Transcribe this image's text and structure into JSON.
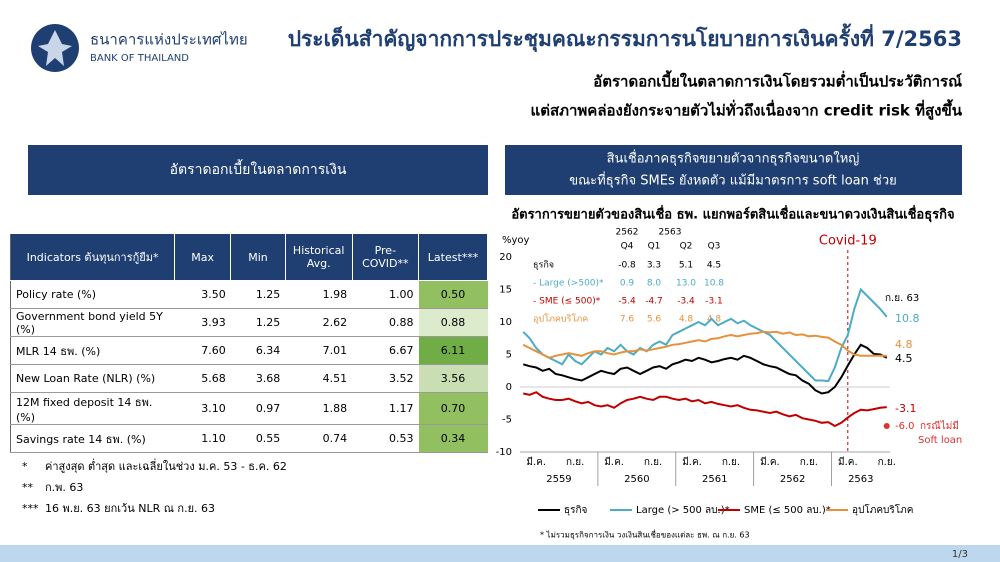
{
  "header": {
    "bank_name_th": "ธนาคารแห่งประเทศไทย",
    "bank_name_en": "BANK OF THAILAND",
    "title": "ประเด็นสำคัญจากการประชุมคณะกรรมการนโยบายการเงินครั้งที่ 7/2563",
    "subtitle_lines": [
      "อัตราดอกเบี้ยในตลาดการเงินโดยรวมต่ำเป็นประวัติการณ์",
      "แต่สภาพคล่องยังกระจายตัวไม่ทั่วถึงเนื่องจาก credit risk ที่สูงขึ้น"
    ]
  },
  "left_panel": {
    "heading": "อัตราดอกเบี้ยในตลาดการเงิน"
  },
  "right_panel": {
    "heading_lines": [
      "สินเชื่อภาคธุรกิจขยายตัวจากธุรกิจขนาดใหญ่",
      "ขณะที่ธุรกิจ SMEs ยังหดตัว แม้มีมาตรการ soft loan ช่วย"
    ]
  },
  "table": {
    "columns": [
      "Indicators ต้นทุนการกู้ยืม*",
      "Max",
      "Min",
      "Historical Avg.",
      "Pre-COVID**",
      "Latest***"
    ],
    "rows": [
      [
        "Policy rate (%)",
        "3.50",
        "1.25",
        "1.98",
        "1.00",
        "0.50"
      ],
      [
        "Government bond yield 5Y (%)",
        "3.93",
        "1.25",
        "2.62",
        "0.88",
        "0.88"
      ],
      [
        "MLR 14 ธพ. (%)",
        "7.60",
        "6.34",
        "7.01",
        "6.67",
        "6.11"
      ],
      [
        "New Loan Rate (NLR) (%)",
        "5.68",
        "3.68",
        "4.51",
        "3.52",
        "3.56"
      ],
      [
        "12M fixed deposit 14 ธพ. (%)",
        "3.10",
        "0.97",
        "1.88",
        "1.17",
        "0.70"
      ],
      [
        "Savings rate 14 ธพ. (%)",
        "1.10",
        "0.55",
        "0.74",
        "0.53",
        "0.34"
      ]
    ],
    "latest_colors": [
      "#92c060",
      "#dcebcb",
      "#70ad47",
      "#c9dfb3",
      "#92c060",
      "#92c060"
    ]
  },
  "notes": [
    {
      "mark": "*",
      "text": "ค่าสูงสุด ต่ำสุด และเฉลี่ยในช่วง ม.ค. 53 - ธ.ค. 62"
    },
    {
      "mark": "**",
      "text": "ก.พ. 63"
    },
    {
      "mark": "***",
      "text": "16 พ.ย. 63 ยกเว้น NLR ณ ก.ย. 63"
    }
  ],
  "chart_data": {
    "type": "line",
    "title": "อัตราการขยายตัวของสินเชื่อ ธพ. แยกพอร์ตสินเชื่อและขนาดวงเงินสินเชื่อธุรกิจ",
    "ylabel": "%yoy",
    "ylim": [
      -10,
      20
    ],
    "yticks": [
      20,
      15,
      10,
      5,
      0,
      -5,
      -10
    ],
    "categories": [
      null,
      null,
      "มี.ค.",
      null,
      null,
      null,
      null,
      null,
      "ก.ย.",
      null,
      null,
      null,
      null,
      null,
      "มี.ค.",
      null,
      null,
      null,
      null,
      null,
      "ก.ย.",
      null,
      null,
      null,
      null,
      null,
      "มี.ค.",
      null,
      null,
      null,
      null,
      null,
      "ก.ย.",
      null,
      null,
      null,
      null,
      null,
      "มี.ค.",
      null,
      null,
      null,
      null,
      null,
      "ก.ย.",
      null,
      null,
      null,
      null,
      null,
      "มี.ค.",
      null,
      null,
      null,
      null,
      null,
      "ก.ย."
    ],
    "year_labels": [
      "2559",
      "2560",
      "2561",
      "2562",
      "2563"
    ],
    "series": [
      {
        "name": "ธุรกิจ",
        "color": "#000000",
        "values": [
          3.5,
          3.2,
          3.0,
          2.5,
          2.8,
          2.0,
          1.8,
          1.5,
          1.2,
          1.0,
          1.5,
          2.0,
          2.5,
          2.2,
          2.0,
          2.8,
          3.0,
          2.5,
          2.0,
          2.5,
          3.0,
          3.2,
          2.8,
          3.5,
          3.8,
          4.2,
          4.0,
          4.5,
          4.2,
          3.8,
          4.0,
          4.3,
          4.5,
          4.2,
          4.8,
          4.5,
          4.0,
          3.5,
          3.2,
          3.0,
          2.5,
          2.0,
          1.8,
          1.0,
          0.5,
          -0.5,
          -1.0,
          -0.8,
          0.0,
          1.5,
          3.3,
          5.0,
          6.5,
          6.0,
          5.1,
          5.0,
          4.5
        ]
      },
      {
        "name": "Large (> 500 ลบ.)*",
        "color": "#4bacc6",
        "values": [
          8.5,
          7.5,
          6.0,
          5.0,
          4.5,
          4.0,
          3.5,
          5.0,
          4.0,
          3.5,
          4.5,
          5.5,
          5.0,
          6.0,
          5.5,
          6.5,
          5.5,
          5.0,
          6.0,
          5.5,
          6.5,
          7.0,
          6.5,
          8.0,
          8.5,
          9.0,
          9.5,
          10.0,
          9.5,
          10.5,
          9.5,
          10.0,
          10.5,
          9.8,
          10.2,
          9.5,
          9.0,
          8.5,
          8.0,
          7.0,
          6.0,
          5.0,
          4.0,
          3.0,
          2.0,
          1.0,
          1.0,
          0.9,
          3.0,
          6.0,
          8.0,
          12.0,
          15.0,
          14.0,
          13.0,
          12.0,
          10.8
        ]
      },
      {
        "name": "SME (≤ 500 ลบ.)*",
        "color": "#c00000",
        "values": [
          -1.0,
          -1.2,
          -0.8,
          -1.5,
          -1.8,
          -2.0,
          -2.0,
          -1.8,
          -2.2,
          -2.5,
          -2.3,
          -2.8,
          -3.0,
          -2.8,
          -3.2,
          -2.5,
          -2.0,
          -1.8,
          -1.5,
          -1.8,
          -2.0,
          -1.5,
          -1.5,
          -1.8,
          -2.0,
          -1.8,
          -2.2,
          -2.0,
          -2.5,
          -2.3,
          -2.6,
          -2.8,
          -3.0,
          -2.8,
          -3.2,
          -3.5,
          -3.6,
          -3.8,
          -4.0,
          -3.8,
          -4.2,
          -4.5,
          -4.3,
          -4.8,
          -5.0,
          -5.2,
          -5.5,
          -5.4,
          -6.0,
          -5.5,
          -4.7,
          -4.0,
          -3.5,
          -3.6,
          -3.4,
          -3.2,
          -3.1
        ]
      },
      {
        "name": "อุปโภคบริโภค",
        "color": "#e6913c",
        "values": [
          6.5,
          6.0,
          5.5,
          5.0,
          4.5,
          4.8,
          5.0,
          5.2,
          5.0,
          4.8,
          5.2,
          5.5,
          5.5,
          5.2,
          5.0,
          5.3,
          5.5,
          5.5,
          5.8,
          5.6,
          5.8,
          6.0,
          6.2,
          6.5,
          6.6,
          6.8,
          7.0,
          7.2,
          7.0,
          7.4,
          7.5,
          7.8,
          8.0,
          7.8,
          8.0,
          8.2,
          8.3,
          8.5,
          8.4,
          8.5,
          8.2,
          8.4,
          8.0,
          8.1,
          7.8,
          7.9,
          7.7,
          7.6,
          7.0,
          6.5,
          5.6,
          5.0,
          4.8,
          4.8,
          4.8,
          4.8,
          4.8
        ]
      }
    ],
    "inset_table": {
      "years": [
        "2562",
        "2563"
      ],
      "quarters": [
        "Q4",
        "Q1",
        "Q2",
        "Q3"
      ],
      "rows": [
        {
          "label": "ธุรกิจ",
          "values": [
            "-0.8",
            "3.3",
            "5.1",
            "4.5"
          ]
        },
        {
          "label": "- Large (>500)*",
          "values": [
            "0.9",
            "8.0",
            "13.0",
            "10.8"
          ]
        },
        {
          "label": "- SME (≤ 500)*",
          "values": [
            "-5.4",
            "-4.7",
            "-3.4",
            "-3.1"
          ]
        },
        {
          "label": "อุปโภคบริโภค",
          "values": [
            "7.6",
            "5.6",
            "4.8",
            "4.8"
          ]
        }
      ]
    },
    "covid_label": "Covid-19",
    "end_label": "ก.ย. 63",
    "no_soft_loan": {
      "value": -6,
      "value_label": "-6.0",
      "note_lines": [
        "กรณีไม่มี",
        "Soft loan"
      ]
    },
    "footnote": "* ไม่รวมธุรกิจการเงิน วงเงินสินเชื่อของแต่ละ ธพ. ณ ก.ย. 63"
  },
  "footer": {
    "page": "1/3"
  }
}
